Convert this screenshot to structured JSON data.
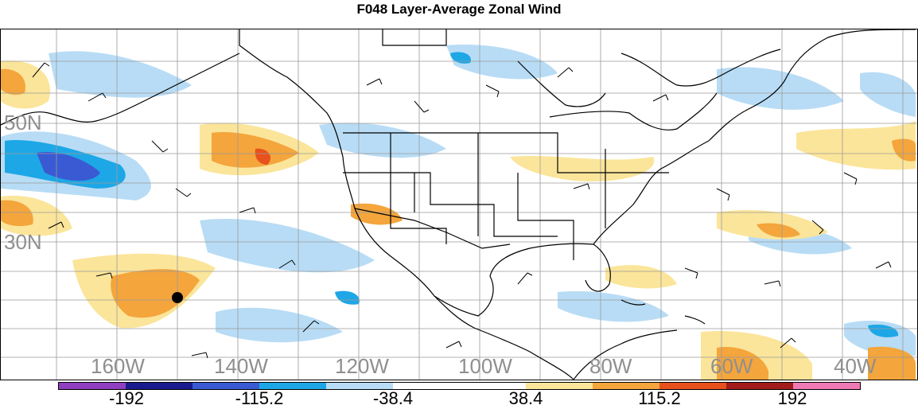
{
  "title": "F048 Layer-Average Zonal Wind",
  "latitude_labels": [
    "50N",
    "30N"
  ],
  "longitude_labels": [
    "160W",
    "140W",
    "120W",
    "100W",
    "80W",
    "60W",
    "40W"
  ],
  "colorbar": {
    "colors": [
      "#8f3fbf",
      "#1b1b8f",
      "#3a5ad4",
      "#1ea7e6",
      "#b8dcf5",
      "#ffffff",
      "#ffffff",
      "#fbe59a",
      "#f4a53c",
      "#e8511c",
      "#a31c1c",
      "#f07ab5"
    ],
    "tick_labels": [
      "-192",
      "-115.2",
      "-38.4",
      "38.4",
      "115.2",
      "192"
    ]
  },
  "icons": [
    "map-marker-icon"
  ]
}
